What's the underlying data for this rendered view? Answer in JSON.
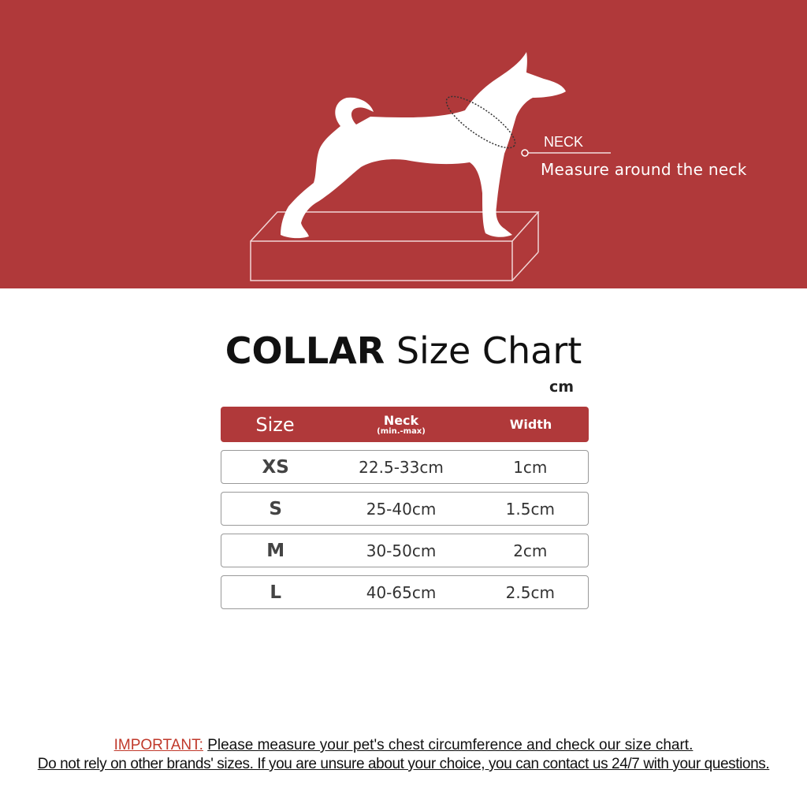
{
  "banner": {
    "color": "#b0393a",
    "neck_label": "NECK",
    "neck_desc": "Measure around the neck"
  },
  "title": {
    "bold": "COLLAR",
    "rest": " Size Chart",
    "unit": "cm"
  },
  "table": {
    "headers": {
      "size": "Size",
      "neck": "Neck",
      "neck_sub": "(min.-max)",
      "width": "Width"
    },
    "rows": [
      {
        "size": "XS",
        "neck": "22.5-33cm",
        "width": "1cm"
      },
      {
        "size": "S",
        "neck": "25-40cm",
        "width": "1.5cm"
      },
      {
        "size": "M",
        "neck": "30-50cm",
        "width": "2cm"
      },
      {
        "size": "L",
        "neck": "40-65cm",
        "width": "2.5cm"
      }
    ]
  },
  "notice": {
    "important": "IMPORTANT:",
    "line1": "Please measure your pet's chest circumference and check our size chart.",
    "line2": "Do not rely on other brands' sizes. If you are unsure about your choice, you can contact us 24/7 with your questions."
  }
}
